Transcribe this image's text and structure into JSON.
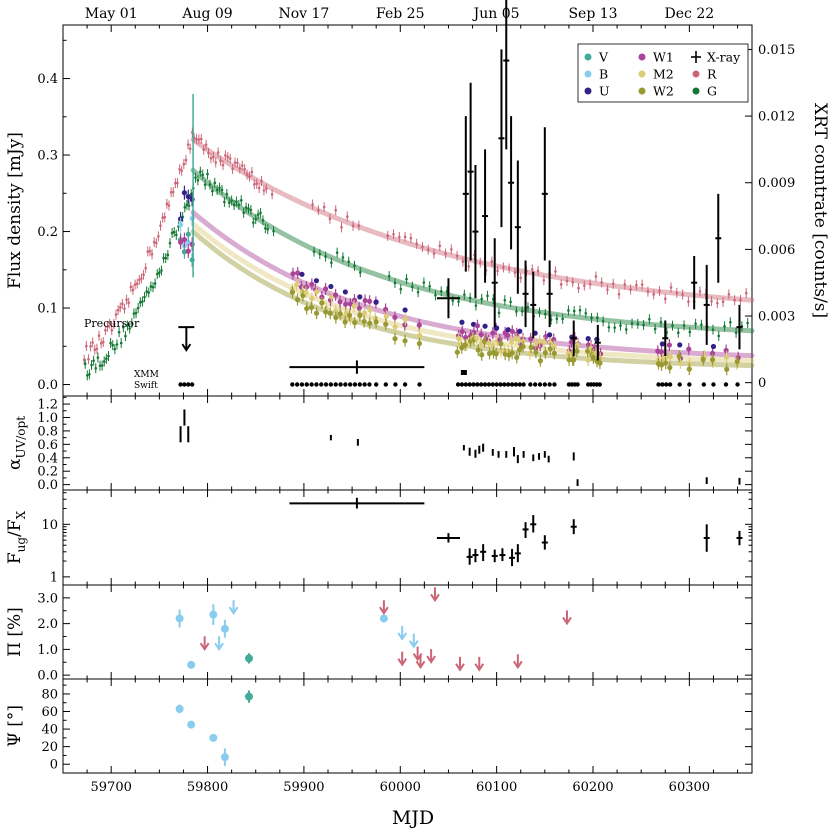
{
  "chart_data": {
    "type": "scatter",
    "xlabel": "MJD",
    "xlim": [
      59650,
      60365
    ],
    "x_ticks": [
      59700,
      59800,
      59900,
      60000,
      60100,
      60200,
      60300
    ],
    "x_tick_labels": [
      "59700",
      "59800",
      "59900",
      "60000",
      "60100",
      "60200",
      "60300"
    ],
    "top_axis": {
      "ticks": [
        59700,
        59800,
        59900,
        60000,
        60100,
        60200,
        60300
      ],
      "labels": [
        "May 01",
        "Aug 09",
        "Nov 17",
        "Feb 25",
        "Jun 05",
        "Sep 13",
        "Dec 22"
      ]
    },
    "panels": [
      {
        "id": "flux",
        "ylabel": "Flux density [mJy]",
        "ylim": [
          -0.015,
          0.47
        ],
        "y_ticks": [
          0.0,
          0.1,
          0.2,
          0.3,
          0.4
        ],
        "y_tick_labels": [
          "0.0",
          "0.1",
          "0.2",
          "0.3",
          "0.4"
        ],
        "ylabel_right": "XRT countrate [counts/s]",
        "ylim_right": [
          -0.0006,
          0.0161
        ],
        "y_ticks_right": [
          0,
          0.003,
          0.006,
          0.009,
          0.012,
          0.015
        ],
        "y_tick_labels_right": [
          "0",
          "0.003",
          "0.006",
          "0.009",
          "0.012",
          "0.015"
        ],
        "legend": [
          {
            "label": "V",
            "color": "#44AA99",
            "marker": "circle"
          },
          {
            "label": "W1",
            "color": "#AA4499",
            "marker": "circle"
          },
          {
            "label": "X-ray",
            "color": "#000000",
            "marker": "plus"
          },
          {
            "label": "B",
            "color": "#88CCEE",
            "marker": "circle"
          },
          {
            "label": "M2",
            "color": "#DDCC77",
            "marker": "circle"
          },
          {
            "label": "R",
            "color": "#CC6677",
            "marker": "circle"
          },
          {
            "label": "U",
            "color": "#332288",
            "marker": "circle"
          },
          {
            "label": "W2",
            "color": "#999933",
            "marker": "circle"
          },
          {
            "label": "G",
            "color": "#117733",
            "marker": "circle"
          }
        ],
        "legend_position": "top-right",
        "annotations": [
          "Precursor",
          "XMM",
          "Swift"
        ],
        "models": [
          {
            "band": "R",
            "color": "#CC6677",
            "t0": 59785,
            "f0": 0.32,
            "finf": 0.085,
            "tau": 260
          },
          {
            "band": "G",
            "color": "#117733",
            "t0": 59785,
            "f0": 0.28,
            "finf": 0.058,
            "tau": 200
          },
          {
            "band": "W1",
            "color": "#AA4499",
            "t0": 59785,
            "f0": 0.225,
            "finf": 0.03,
            "tau": 180
          },
          {
            "band": "M2",
            "color": "#DDCC77",
            "t0": 59785,
            "f0": 0.21,
            "finf": 0.025,
            "tau": 170
          },
          {
            "band": "W2",
            "color": "#999933",
            "t0": 59785,
            "f0": 0.2,
            "finf": 0.02,
            "tau": 160
          }
        ],
        "xray_points": [
          {
            "x": 59778,
            "y": 0.0025,
            "err": 0,
            "upper_limit": true
          },
          {
            "x": 59955,
            "y": 0.0007,
            "err": 0.0003,
            "xerr": 70
          },
          {
            "x": 60050,
            "y": 0.0038,
            "err": 0.0009,
            "xerr": 12
          },
          {
            "x": 60068,
            "y": 0.0085,
            "err": 0.0035
          },
          {
            "x": 60073,
            "y": 0.0095,
            "err": 0.004
          },
          {
            "x": 60078,
            "y": 0.0068,
            "err": 0.003
          },
          {
            "x": 60088,
            "y": 0.0075,
            "err": 0.003
          },
          {
            "x": 60098,
            "y": 0.0045,
            "err": 0.002
          },
          {
            "x": 60105,
            "y": 0.011,
            "err": 0.004
          },
          {
            "x": 60110,
            "y": 0.0145,
            "err": 0.004
          },
          {
            "x": 60115,
            "y": 0.009,
            "err": 0.003
          },
          {
            "x": 60122,
            "y": 0.007,
            "err": 0.003
          },
          {
            "x": 60130,
            "y": 0.004,
            "err": 0.0015
          },
          {
            "x": 60138,
            "y": 0.0035,
            "err": 0.0015
          },
          {
            "x": 60150,
            "y": 0.0085,
            "err": 0.003
          },
          {
            "x": 60155,
            "y": 0.004,
            "err": 0.0015
          },
          {
            "x": 60180,
            "y": 0.002,
            "err": 0.0008
          },
          {
            "x": 60205,
            "y": 0.0018,
            "err": 0.0008
          },
          {
            "x": 60275,
            "y": 0.002,
            "err": 0.0008
          },
          {
            "x": 60305,
            "y": 0.0045,
            "err": 0.0012
          },
          {
            "x": 60318,
            "y": 0.0035,
            "err": 0.0018
          },
          {
            "x": 60330,
            "y": 0.0065,
            "err": 0.002
          },
          {
            "x": 60352,
            "y": 0.0025,
            "err": 0.001
          }
        ],
        "observations": {
          "xmm": [
            60066
          ],
          "swift": [
            59772,
            59776,
            59780,
            59784,
            59888,
            59893,
            59898,
            59903,
            59908,
            59913,
            59918,
            59923,
            59928,
            59933,
            59938,
            59943,
            59948,
            59953,
            59958,
            59963,
            59968,
            59975,
            59985,
            59995,
            60005,
            60020,
            60060,
            60064,
            60068,
            60072,
            60076,
            60080,
            60084,
            60088,
            60092,
            60096,
            60100,
            60104,
            60108,
            60112,
            60116,
            60120,
            60124,
            60128,
            60135,
            60140,
            60145,
            60150,
            60155,
            60160,
            60175,
            60178,
            60181,
            60184,
            60195,
            60198,
            60201,
            60204,
            60207,
            60268,
            60272,
            60276,
            60280,
            60290,
            60300,
            60315,
            60325,
            60338,
            60350
          ]
        }
      },
      {
        "id": "alpha",
        "ylabel": "α_UV/opt",
        "ylim": [
          -0.08,
          1.32
        ],
        "y_ticks": [
          0.0,
          0.2,
          0.4,
          0.6,
          0.8,
          1.0,
          1.2
        ],
        "y_tick_labels": [
          "0.0",
          "0.2",
          "0.4",
          "0.6",
          "0.8",
          "1.0",
          "1.2"
        ],
        "points": [
          {
            "x": 59772,
            "y": 0.75,
            "err": 0.12
          },
          {
            "x": 59776,
            "y": 1.0,
            "err": 0.12
          },
          {
            "x": 59780,
            "y": 0.75,
            "err": 0.12
          },
          {
            "x": 59928,
            "y": 0.7,
            "err": 0.04
          },
          {
            "x": 59956,
            "y": 0.63,
            "err": 0.05
          },
          {
            "x": 60066,
            "y": 0.55,
            "err": 0.04
          },
          {
            "x": 60072,
            "y": 0.49,
            "err": 0.06
          },
          {
            "x": 60078,
            "y": 0.46,
            "err": 0.06
          },
          {
            "x": 60082,
            "y": 0.52,
            "err": 0.06
          },
          {
            "x": 60086,
            "y": 0.55,
            "err": 0.06
          },
          {
            "x": 60096,
            "y": 0.48,
            "err": 0.05
          },
          {
            "x": 60102,
            "y": 0.45,
            "err": 0.05
          },
          {
            "x": 60110,
            "y": 0.45,
            "err": 0.05
          },
          {
            "x": 60118,
            "y": 0.49,
            "err": 0.07
          },
          {
            "x": 60122,
            "y": 0.38,
            "err": 0.06
          },
          {
            "x": 60128,
            "y": 0.45,
            "err": 0.05
          },
          {
            "x": 60138,
            "y": 0.4,
            "err": 0.05
          },
          {
            "x": 60144,
            "y": 0.42,
            "err": 0.05
          },
          {
            "x": 60150,
            "y": 0.45,
            "err": 0.05
          },
          {
            "x": 60154,
            "y": 0.38,
            "err": 0.05
          },
          {
            "x": 60180,
            "y": 0.42,
            "err": 0.06
          },
          {
            "x": 60184,
            "y": 0.03,
            "err": 0.05
          },
          {
            "x": 60318,
            "y": 0.06,
            "err": 0.05
          },
          {
            "x": 60352,
            "y": 0.05,
            "err": 0.05
          }
        ]
      },
      {
        "id": "ratio",
        "ylabel": "F_ug/F_X",
        "yscale": "log",
        "ylim": [
          0.7,
          45
        ],
        "y_ticks": [
          1,
          10
        ],
        "y_tick_labels": [
          "1",
          "10"
        ],
        "points": [
          {
            "x": 59955,
            "y": 25,
            "lo": 20,
            "hi": 32,
            "xerr": 70
          },
          {
            "x": 60050,
            "y": 5.5,
            "lo": 4.5,
            "hi": 6.8,
            "xerr": 12
          },
          {
            "x": 60072,
            "y": 2.4,
            "lo": 1.7,
            "hi": 3.5
          },
          {
            "x": 60078,
            "y": 2.6,
            "lo": 1.9,
            "hi": 3.4
          },
          {
            "x": 60086,
            "y": 3.0,
            "lo": 2.0,
            "hi": 4.2
          },
          {
            "x": 60098,
            "y": 2.5,
            "lo": 1.9,
            "hi": 3.3
          },
          {
            "x": 60106,
            "y": 2.6,
            "lo": 2.0,
            "hi": 3.5
          },
          {
            "x": 60116,
            "y": 2.3,
            "lo": 1.6,
            "hi": 3.4
          },
          {
            "x": 60122,
            "y": 2.8,
            "lo": 1.9,
            "hi": 4.2
          },
          {
            "x": 60130,
            "y": 8.0,
            "lo": 5.5,
            "hi": 11
          },
          {
            "x": 60138,
            "y": 10,
            "lo": 7,
            "hi": 15
          },
          {
            "x": 60150,
            "y": 4.5,
            "lo": 3.3,
            "hi": 6.2
          },
          {
            "x": 60180,
            "y": 9.0,
            "lo": 6.5,
            "hi": 12.5
          },
          {
            "x": 60318,
            "y": 5.5,
            "lo": 3.0,
            "hi": 10
          },
          {
            "x": 60352,
            "y": 5.5,
            "lo": 4.0,
            "hi": 7.5
          }
        ]
      },
      {
        "id": "pol",
        "ylabel": "Π [%]",
        "ylim": [
          -0.15,
          3.5
        ],
        "y_ticks": [
          0.0,
          1.0,
          2.0,
          3.0
        ],
        "y_tick_labels": [
          "0.0",
          "1.0",
          "2.0",
          "3.0"
        ],
        "points": [
          {
            "x": 59771,
            "y": 2.2,
            "err": 0.35,
            "color": "#88CCEE"
          },
          {
            "x": 59783,
            "y": 0.4,
            "err": 0.1,
            "color": "#88CCEE"
          },
          {
            "x": 59806,
            "y": 2.35,
            "err": 0.4,
            "color": "#88CCEE"
          },
          {
            "x": 59818,
            "y": 1.8,
            "err": 0.35,
            "color": "#88CCEE"
          },
          {
            "x": 59843,
            "y": 0.65,
            "err": 0.2,
            "color": "#44AA99"
          },
          {
            "x": 59983,
            "y": 2.2,
            "err": 0.1,
            "color": "#88CCEE"
          }
        ],
        "upper_limits": [
          {
            "x": 59797,
            "y": 1.2,
            "color": "#CC6677"
          },
          {
            "x": 59812,
            "y": 1.2,
            "color": "#88CCEE"
          },
          {
            "x": 59827,
            "y": 2.6,
            "color": "#88CCEE"
          },
          {
            "x": 59983,
            "y": 2.6,
            "color": "#CC6677"
          },
          {
            "x": 60002,
            "y": 1.6,
            "color": "#88CCEE"
          },
          {
            "x": 60002,
            "y": 0.6,
            "color": "#CC6677"
          },
          {
            "x": 60014,
            "y": 1.3,
            "color": "#88CCEE"
          },
          {
            "x": 60018,
            "y": 0.8,
            "color": "#CC6677"
          },
          {
            "x": 60021,
            "y": 0.5,
            "color": "#CC6677"
          },
          {
            "x": 60032,
            "y": 0.7,
            "color": "#CC6677"
          },
          {
            "x": 60036,
            "y": 3.1,
            "color": "#CC6677"
          },
          {
            "x": 60062,
            "y": 0.4,
            "color": "#CC6677"
          },
          {
            "x": 60082,
            "y": 0.4,
            "color": "#CC6677"
          },
          {
            "x": 60122,
            "y": 0.5,
            "color": "#CC6677"
          },
          {
            "x": 60173,
            "y": 2.2,
            "color": "#CC6677"
          }
        ]
      },
      {
        "id": "angle",
        "ylabel": "Ψ [°]",
        "ylim": [
          -10,
          97
        ],
        "y_ticks": [
          0,
          20,
          40,
          60,
          80
        ],
        "y_tick_labels": [
          "0",
          "20",
          "40",
          "60",
          "80"
        ],
        "points": [
          {
            "x": 59771,
            "y": 63,
            "err": 5,
            "color": "#88CCEE"
          },
          {
            "x": 59783,
            "y": 45,
            "err": 3,
            "color": "#88CCEE"
          },
          {
            "x": 59806,
            "y": 30,
            "err": 4,
            "color": "#88CCEE"
          },
          {
            "x": 59818,
            "y": 8,
            "err": 10,
            "color": "#88CCEE"
          },
          {
            "x": 59843,
            "y": 77,
            "err": 7,
            "color": "#44AA99"
          }
        ]
      }
    ]
  }
}
